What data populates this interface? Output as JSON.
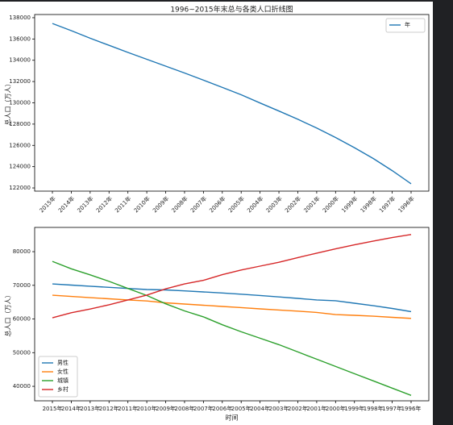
{
  "chart_data": [
    {
      "type": "line",
      "title": "1996~2015年末总与各类人口折线图",
      "y_label": "总人口（万人）",
      "categories": [
        "2015年",
        "2014年",
        "2013年",
        "2012年",
        "2011年",
        "2010年",
        "2009年",
        "2008年",
        "2007年",
        "2006年",
        "2005年",
        "2004年",
        "2003年",
        "2002年",
        "2001年",
        "2000年",
        "1999年",
        "1998年",
        "1997年",
        "1996年"
      ],
      "series": [
        {
          "name": "年",
          "color": "#1f77b4",
          "values": [
            137462,
            136782,
            136072,
            135404,
            134735,
            134091,
            133450,
            132802,
            132129,
            131448,
            130756,
            129988,
            129227,
            128453,
            127627,
            126743,
            125786,
            124761,
            123626,
            122389
          ]
        }
      ],
      "ylim": [
        121700,
        138300
      ],
      "yticks": [
        122000,
        124000,
        126000,
        128000,
        130000,
        132000,
        134000,
        136000,
        138000
      ],
      "legend": "upper right"
    },
    {
      "type": "line",
      "x_label": "时间",
      "y_label": "总人口（万人）",
      "categories": [
        "2015年",
        "2014年",
        "2013年",
        "2012年",
        "2011年",
        "2010年",
        "2009年",
        "2008年",
        "2007年",
        "2006年",
        "2005年",
        "2004年",
        "2003年",
        "2002年",
        "2001年",
        "2000年",
        "1999年",
        "1998年",
        "1997年",
        "1996年"
      ],
      "series": [
        {
          "name": "男性",
          "color": "#1f77b4",
          "values": [
            70414,
            70079,
            69728,
            69395,
            69068,
            68748,
            68647,
            68357,
            68048,
            67728,
            67375,
            66976,
            66556,
            66115,
            65672,
            65437,
            64692,
            63940,
            63131,
            62200
          ]
        },
        {
          "name": "女性",
          "color": "#ff7f0e",
          "values": [
            67048,
            66703,
            66344,
            66009,
            65667,
            65343,
            64803,
            64445,
            64081,
            63720,
            63381,
            63012,
            62671,
            62338,
            61955,
            61306,
            61094,
            60821,
            60495,
            60189
          ]
        },
        {
          "name": "城镇",
          "color": "#2ca02c",
          "values": [
            77116,
            74916,
            73111,
            71182,
            69079,
            66978,
            64512,
            62403,
            60633,
            58288,
            56212,
            54283,
            52376,
            50212,
            48064,
            45906,
            43748,
            41608,
            39449,
            37304
          ]
        },
        {
          "name": "乡村",
          "color": "#d62728",
          "values": [
            60346,
            61866,
            62961,
            64222,
            65656,
            67113,
            68938,
            70399,
            71496,
            73160,
            74544,
            75705,
            76851,
            78241,
            79563,
            80837,
            82038,
            83153,
            84177,
            85085
          ]
        }
      ],
      "ylim": [
        35700,
        87200
      ],
      "yticks": [
        40000,
        50000,
        60000,
        70000,
        80000
      ],
      "legend": "lower left"
    }
  ]
}
